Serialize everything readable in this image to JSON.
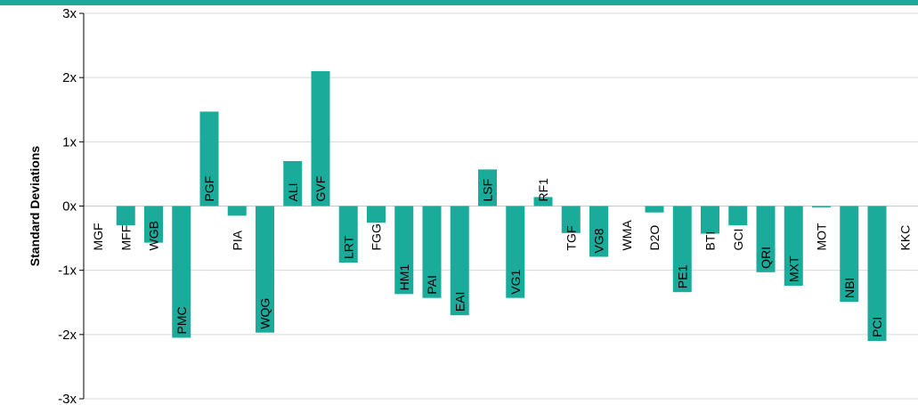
{
  "colors": {
    "bar": "#1aab9b",
    "top_band": "#1aab9b",
    "grid": "#d9d9d9",
    "axis": "#000000"
  },
  "chart_data": {
    "type": "bar",
    "title": "",
    "xlabel": "",
    "ylabel": "Standard Deviations",
    "ylim": [
      -3,
      3
    ],
    "yticks": [
      -3,
      -2,
      -1,
      0,
      1,
      2,
      3
    ],
    "ytick_labels": [
      "-3x",
      "-2x",
      "-1x",
      "0x",
      "1x",
      "2x",
      "3x"
    ],
    "grid": true,
    "categories": [
      "MGF",
      "MFF",
      "WGB",
      "PMC",
      "PGF",
      "PIA",
      "WQG",
      "ALI",
      "GVF",
      "LRT",
      "FGG",
      "HM1",
      "PAI",
      "EAI",
      "LSF",
      "VG1",
      "RF1",
      "TGF",
      "VG8",
      "WMA",
      "D2O",
      "PE1",
      "BTI",
      "GCI",
      "QRI",
      "MXT",
      "MOT",
      "NBI",
      "PCI",
      "KKC"
    ],
    "values": [
      0.0,
      -0.3,
      -0.57,
      -2.05,
      1.47,
      -0.15,
      -1.97,
      0.7,
      2.1,
      -0.88,
      -0.26,
      -1.37,
      -1.43,
      -1.7,
      0.57,
      -1.43,
      0.14,
      -0.42,
      -0.79,
      0.0,
      -0.1,
      -1.34,
      -0.43,
      -0.3,
      -1.03,
      -1.24,
      -0.02,
      -1.49,
      -2.1,
      0.0
    ]
  }
}
